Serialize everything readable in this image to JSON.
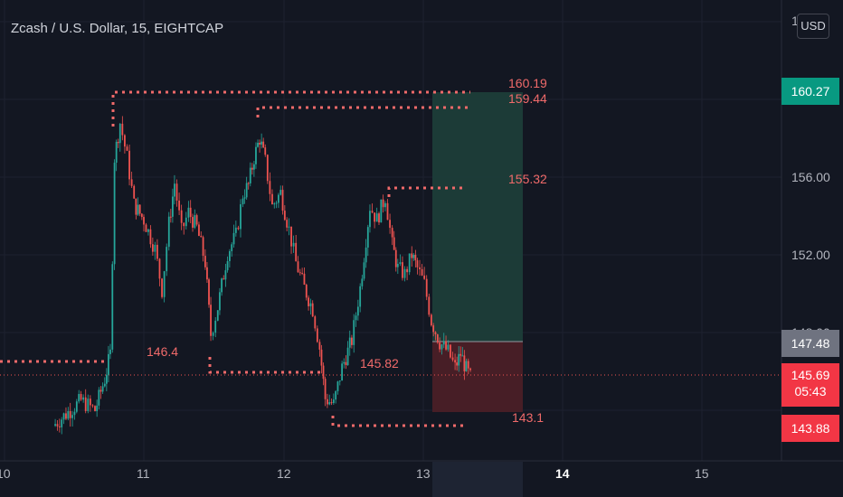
{
  "header": {
    "title": "Zcash / U.S. Dollar, 15, EIGHTCAP",
    "currency_button": "USD"
  },
  "price_axis": {
    "ticks": [
      "156.00",
      "152.00"
    ],
    "top_partial": "1",
    "hidden_partial": "148.00"
  },
  "time_axis": {
    "labels": [
      "10",
      "11",
      "12",
      "13",
      "14",
      "15"
    ]
  },
  "price_tags": {
    "target": "160.27",
    "entry": "147.48",
    "last": "145.69",
    "countdown": "05:43",
    "stop": "143.88"
  },
  "levels": {
    "top_high": "160.19",
    "second_high": "159.44",
    "mid_high": "155.32",
    "low_left": "146.4",
    "low_mid": "145.82",
    "bottom_low": "143.1"
  },
  "colors": {
    "background": "#131722",
    "up": "#26a69a",
    "down": "#ef5350",
    "level": "#f06a6a",
    "profit_zone": "#1c3d39",
    "loss_zone": "#4a1f27",
    "entry_tag": "#6f7380",
    "target_tag": "#089981",
    "stop_tag": "#f23645"
  },
  "chart_data": {
    "type": "candlestick",
    "symbol": "Zcash / U.S. Dollar",
    "interval": "15",
    "exchange": "EIGHTCAP",
    "x_tick_labels": [
      "10",
      "11",
      "12",
      "13",
      "14",
      "15"
    ],
    "y_tick_labels": [
      "156.00",
      "152.00"
    ],
    "ylim": [
      142.5,
      163.5
    ],
    "last_price": 145.69,
    "long_position": {
      "target": 160.27,
      "entry": 147.48,
      "stop": 143.88
    },
    "levels": [
      160.19,
      159.44,
      155.32,
      146.4,
      145.82,
      143.1
    ],
    "close_path": [
      [
        10.35,
        143.2
      ],
      [
        10.55,
        144.5
      ],
      [
        10.65,
        144.0
      ],
      [
        10.72,
        145.6
      ],
      [
        10.76,
        146.9
      ],
      [
        10.79,
        157.0
      ],
      [
        10.83,
        158.8
      ],
      [
        10.88,
        157.0
      ],
      [
        10.93,
        154.6
      ],
      [
        11.0,
        153.8
      ],
      [
        11.08,
        152.3
      ],
      [
        11.13,
        150.2
      ],
      [
        11.18,
        153.6
      ],
      [
        11.22,
        155.7
      ],
      [
        11.27,
        153.2
      ],
      [
        11.32,
        154.2
      ],
      [
        11.38,
        153.4
      ],
      [
        11.44,
        151.6
      ],
      [
        11.48,
        147.9
      ],
      [
        11.53,
        149.3
      ],
      [
        11.6,
        152.1
      ],
      [
        11.66,
        153.0
      ],
      [
        11.71,
        155.1
      ],
      [
        11.75,
        155.6
      ],
      [
        11.79,
        157.0
      ],
      [
        11.83,
        158.0
      ],
      [
        11.87,
        156.8
      ],
      [
        11.92,
        154.5
      ],
      [
        11.98,
        155.2
      ],
      [
        12.04,
        153.3
      ],
      [
        12.09,
        151.6
      ],
      [
        12.15,
        150.3
      ],
      [
        12.21,
        149.2
      ],
      [
        12.26,
        147.2
      ],
      [
        12.3,
        144.6
      ],
      [
        12.36,
        144.3
      ],
      [
        12.42,
        146.2
      ],
      [
        12.49,
        147.6
      ],
      [
        12.55,
        150.3
      ],
      [
        12.62,
        154.5
      ],
      [
        12.67,
        153.8
      ],
      [
        12.73,
        155.0
      ],
      [
        12.78,
        152.5
      ],
      [
        12.82,
        151.3
      ],
      [
        12.87,
        151.0
      ],
      [
        12.92,
        152.0
      ],
      [
        12.96,
        151.3
      ],
      [
        13.01,
        150.5
      ],
      [
        13.06,
        148.6
      ],
      [
        13.12,
        147.5
      ],
      [
        13.18,
        147.0
      ],
      [
        13.23,
        146.2
      ],
      [
        13.27,
        146.9
      ],
      [
        13.31,
        146.1
      ],
      [
        13.34,
        145.69
      ]
    ]
  }
}
